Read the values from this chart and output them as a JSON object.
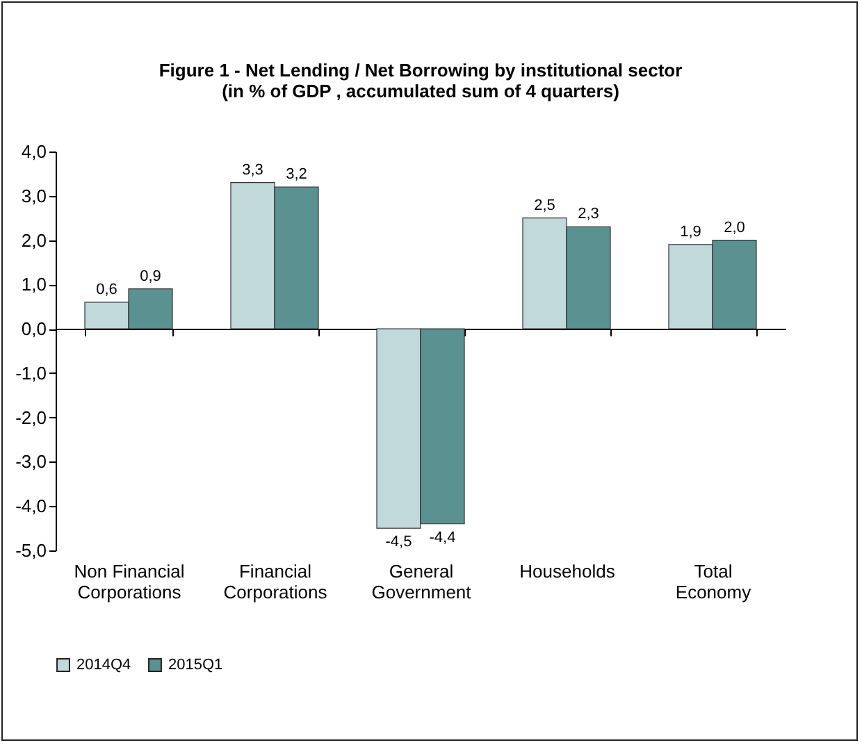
{
  "chart_data": {
    "type": "bar",
    "title": "Figure 1 - Net Lending / Net Borrowing by institutional sector",
    "subtitle": "(in % of GDP , accumulated sum of 4 quarters)",
    "categories": [
      "Non Financial Corporations",
      "Financial Corporations",
      "General Government",
      "Households",
      "Total Economy"
    ],
    "series": [
      {
        "name": "2014Q4",
        "color": "#c2d9db",
        "values": [
          0.6,
          3.3,
          -4.5,
          2.5,
          1.9
        ],
        "value_labels": [
          "0,6",
          "3,3",
          "-4,5",
          "2,5",
          "1,9"
        ]
      },
      {
        "name": "2015Q1",
        "color": "#5b9191",
        "values": [
          0.9,
          3.2,
          -4.4,
          2.3,
          2.0
        ],
        "value_labels": [
          "0,9",
          "3,2",
          "-4,4",
          "2,3",
          "2,0"
        ]
      }
    ],
    "ylim": [
      -5,
      4
    ],
    "yticks": [
      {
        "value": 4,
        "label": "4,0"
      },
      {
        "value": 3,
        "label": "3,0"
      },
      {
        "value": 2,
        "label": "2,0"
      },
      {
        "value": 1,
        "label": "1,0"
      },
      {
        "value": 0,
        "label": "0,0"
      },
      {
        "value": -1,
        "label": "-1,0"
      },
      {
        "value": -2,
        "label": "-2,0"
      },
      {
        "value": -3,
        "label": "-3,0"
      },
      {
        "value": -4,
        "label": "-4,0"
      },
      {
        "value": -5,
        "label": "-5,0"
      }
    ],
    "legend": "bottom"
  }
}
